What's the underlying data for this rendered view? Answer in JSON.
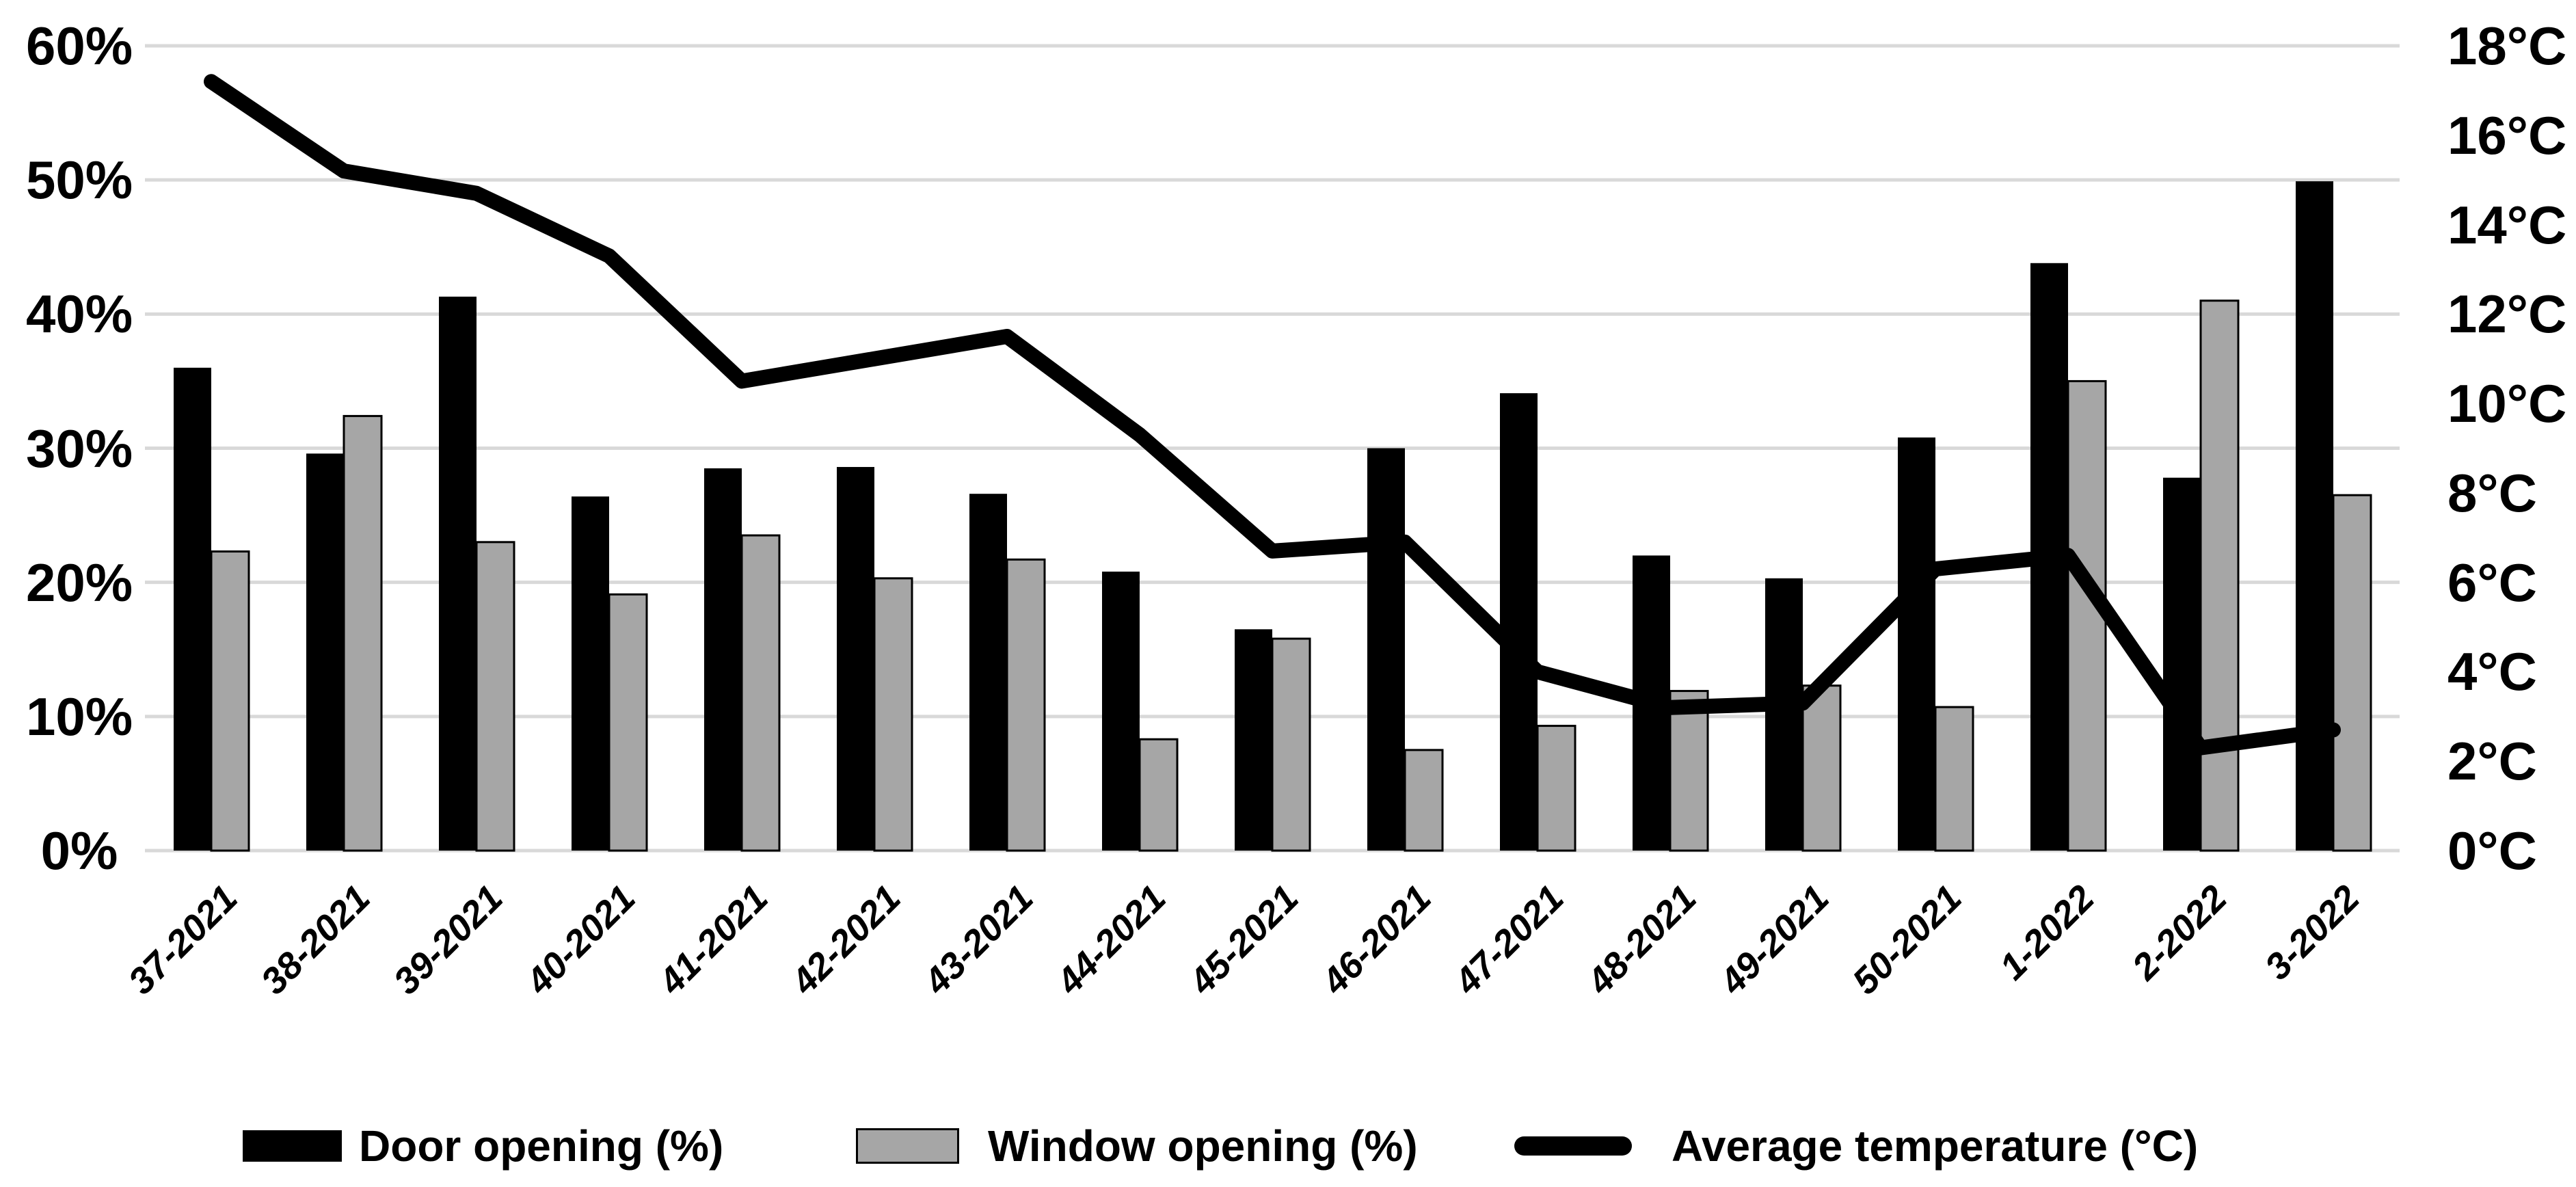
{
  "chart_data": {
    "type": "combo-bar-line",
    "title": "",
    "categories": [
      "37-2021",
      "38-2021",
      "39-2021",
      "40-2021",
      "41-2021",
      "42-2021",
      "43-2021",
      "44-2021",
      "45-2021",
      "46-2021",
      "47-2021",
      "48-2021",
      "49-2021",
      "50-2021",
      "1-2022",
      "2-2022",
      "3-2022"
    ],
    "series": [
      {
        "name": "Door opening (%)",
        "type": "bar",
        "axis": "left",
        "color": "#000000",
        "values": [
          36.0,
          29.6,
          41.3,
          26.4,
          28.5,
          28.6,
          26.6,
          20.8,
          16.5,
          30.0,
          34.1,
          22.0,
          20.3,
          30.8,
          43.8,
          27.8,
          49.9
        ]
      },
      {
        "name": "Window opening (%)",
        "type": "bar",
        "axis": "left",
        "color": "#a6a6a6",
        "border_color": "#000000",
        "values": [
          22.3,
          32.4,
          23.0,
          19.1,
          23.5,
          20.3,
          21.7,
          8.3,
          15.8,
          7.5,
          9.3,
          11.9,
          12.3,
          10.7,
          35.0,
          41.0,
          26.5
        ]
      },
      {
        "name": "Average temperature (°C)",
        "type": "line",
        "axis": "right",
        "color": "#000000",
        "values": [
          17.2,
          15.2,
          14.7,
          13.3,
          10.5,
          11.0,
          11.5,
          9.3,
          6.7,
          6.9,
          4.0,
          3.2,
          3.3,
          6.3,
          6.6,
          2.3,
          2.7
        ]
      }
    ],
    "left_axis": {
      "min": 0,
      "max": 60,
      "step": 10,
      "tick_labels": [
        "0%",
        "10%",
        "20%",
        "30%",
        "40%",
        "50%",
        "60%"
      ]
    },
    "right_axis": {
      "min": 0,
      "max": 18,
      "step": 2,
      "tick_labels": [
        "0°C",
        "2°C",
        "4°C",
        "6°C",
        "8°C",
        "10°C",
        "12°C",
        "14°C",
        "16°C",
        "18°C"
      ]
    },
    "gridlines": {
      "show": true,
      "color": "#d9d9d9"
    },
    "background": "#ffffff",
    "legend_position": "bottom"
  }
}
